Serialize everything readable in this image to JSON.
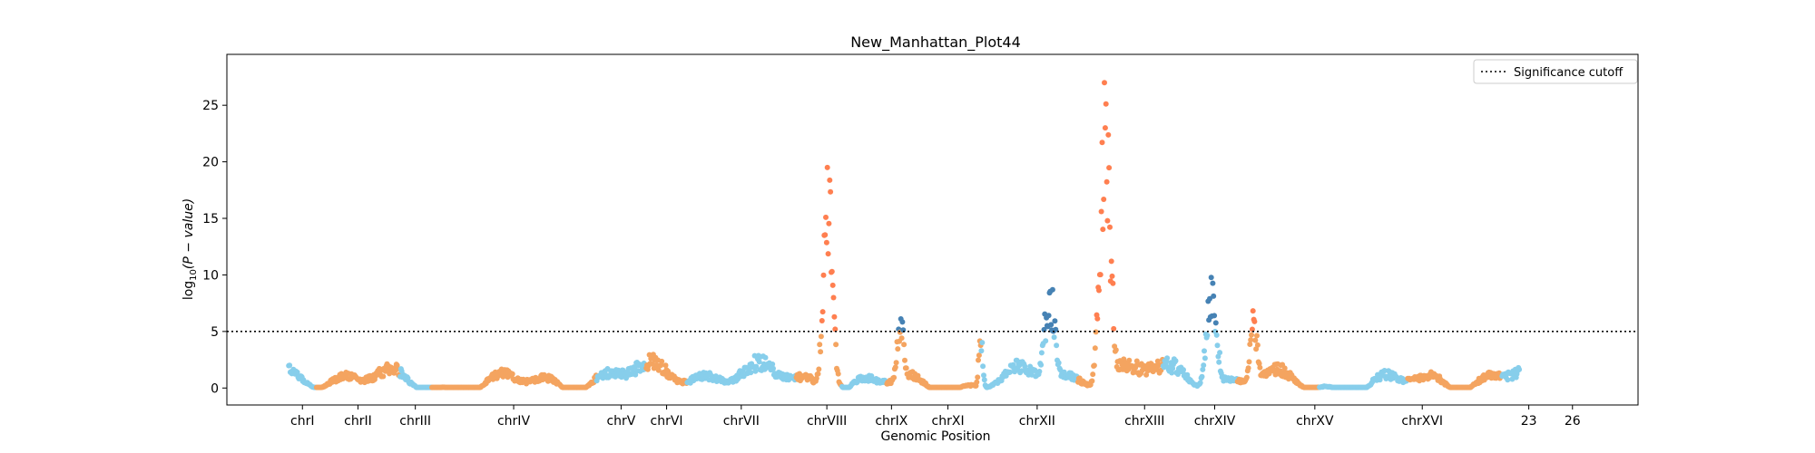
{
  "chart_data": {
    "type": "scatter",
    "title": "New_Manhattan_Plot44",
    "xlabel": "Genomic Position",
    "ylabel_base": "log",
    "ylabel_sub": "10",
    "ylabel_rest": "(P − value)",
    "ylim": [
      -1.5,
      29.5
    ],
    "yticks": [
      0,
      5,
      10,
      15,
      20,
      25
    ],
    "xlim": [
      0,
      1550
    ],
    "significance_cutoff": 5,
    "legend": {
      "label": "Significance cutoff",
      "position": "top-right"
    },
    "colors": {
      "even": "#87CEEB",
      "odd": "#F4A460",
      "sig_even": "#4682B4",
      "sig_odd": "#FF7F50"
    },
    "chromosomes": [
      {
        "name": "chrI",
        "start": 68,
        "end": 98,
        "center": 83,
        "parity": "even"
      },
      {
        "name": "chrII",
        "start": 98,
        "end": 190,
        "center": 144,
        "parity": "odd"
      },
      {
        "name": "chrIII",
        "start": 190,
        "end": 225,
        "center": 207,
        "parity": "even"
      },
      {
        "name": "chrIV",
        "start": 225,
        "end": 406,
        "center": 315,
        "parity": "odd"
      },
      {
        "name": "chrV",
        "start": 406,
        "end": 460,
        "center": 433,
        "parity": "even"
      },
      {
        "name": "chrVI",
        "start": 460,
        "end": 505,
        "center": 483,
        "parity": "odd"
      },
      {
        "name": "chrVII",
        "start": 505,
        "end": 625,
        "center": 565,
        "parity": "even"
      },
      {
        "name": "chrVIII",
        "start": 625,
        "end": 675,
        "center": 659,
        "parity": "odd"
      },
      {
        "name": "chrIX",
        "start": 675,
        "end": 725,
        "center": 730,
        "parity": "even"
      },
      {
        "name": "chrXI",
        "start": 725,
        "end": 828,
        "center": 792,
        "parity": "odd"
      },
      {
        "name": "chrXII",
        "start": 828,
        "end": 935,
        "center": 890,
        "parity": "even"
      },
      {
        "name": "chrXIII",
        "start": 935,
        "end": 1028,
        "center": 1008,
        "parity": "odd"
      },
      {
        "name": "chrXIV",
        "start": 1028,
        "end": 1110,
        "center": 1085,
        "parity": "even"
      },
      {
        "name": "chrXV",
        "start": 1110,
        "end": 1200,
        "center": 1195,
        "parity": "odd"
      },
      {
        "name": "chrXVI",
        "start": 1200,
        "end": 1297,
        "center": 1313,
        "parity": "even"
      },
      {
        "name": "23",
        "start": 1297,
        "end": 1400,
        "center": 1430,
        "parity": "odd"
      },
      {
        "name": "26",
        "start": 1400,
        "end": 1420,
        "center": 1478,
        "parity": "even"
      }
    ],
    "peaks": [
      {
        "center": 660,
        "height": 21.0,
        "width": 7,
        "significant_color": "odd"
      },
      {
        "center": 740,
        "height": 6.8,
        "width": 6,
        "significant_color": "even"
      },
      {
        "center": 828,
        "height": 6.0,
        "width": 3,
        "significant_color": "odd"
      },
      {
        "center": 904,
        "height": 9.7,
        "width": 9,
        "significant_color": "even"
      },
      {
        "center": 965,
        "height": 28.2,
        "width": 8,
        "significant_color": "odd"
      },
      {
        "center": 1082,
        "height": 10.2,
        "width": 8,
        "significant_color": "even"
      },
      {
        "center": 1128,
        "height": 7.0,
        "width": 6,
        "significant_color": "odd"
      }
    ]
  }
}
